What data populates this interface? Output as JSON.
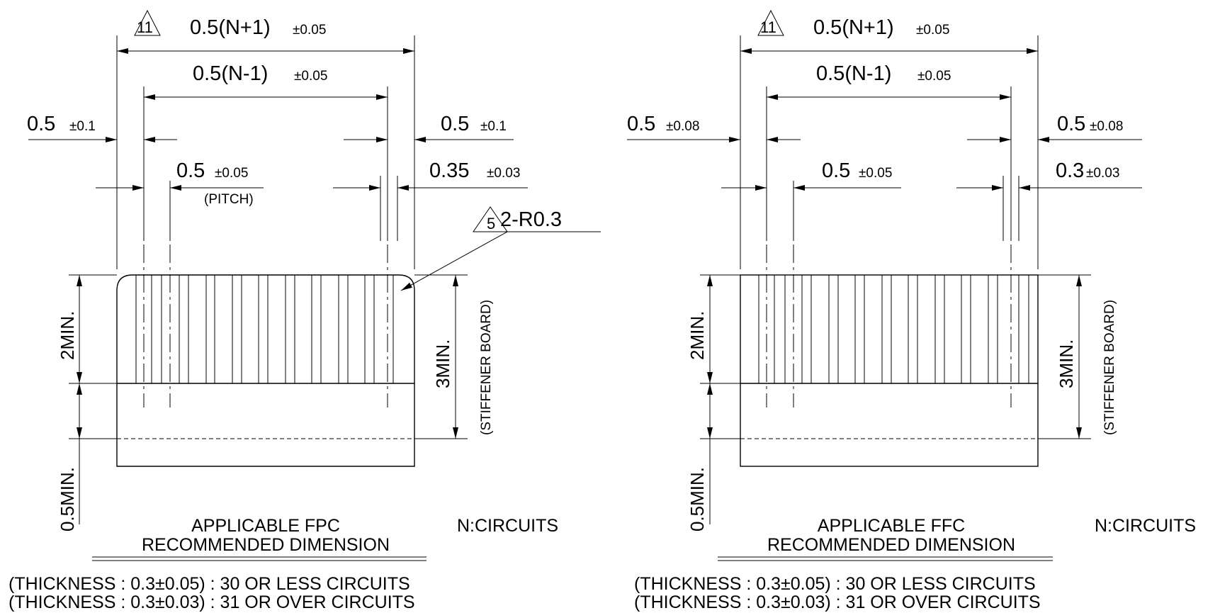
{
  "figure_left": {
    "marker_11": "11",
    "dim_total": "0.5(N+1)",
    "tol_total": "±0.05",
    "dim_inner": "0.5(N-1)",
    "tol_inner": "±0.05",
    "edge_left": "0.5",
    "tol_edge_left": "±0.1",
    "edge_right": "0.5",
    "tol_edge_right": "±0.1",
    "pitch": "0.5",
    "tol_pitch": "±0.05",
    "pitch_note": "(PITCH)",
    "width": "0.35",
    "tol_width": "±0.03",
    "marker_5": "5",
    "radius_note": "2-R0.3",
    "min_2": "2MIN.",
    "min_05": "0.5MIN.",
    "min_3": "3MIN.",
    "stiffener": "(STIFFENER BOARD)",
    "title_line1": "APPLICABLE FPC",
    "title_line2": "RECOMMENDED DIMENSION",
    "n_circuits": "N:CIRCUITS",
    "thickness_1": "(THICKNESS : 0.3±0.05)  : 30 OR LESS CIRCUITS",
    "thickness_2": "(THICKNESS : 0.3±0.03)  : 31 OR OVER CIRCUITS"
  },
  "figure_right": {
    "marker_11": "11",
    "dim_total": "0.5(N+1)",
    "tol_total": "±0.05",
    "dim_inner": "0.5(N-1)",
    "tol_inner": "±0.05",
    "edge_left": "0.5",
    "tol_edge_left": "±0.08",
    "edge_right": "0.5",
    "tol_edge_right": "±0.08",
    "pitch": "0.5",
    "tol_pitch": "±0.05",
    "width": "0.3",
    "tol_width": "±0.03",
    "min_2": "2MIN.",
    "min_05": "0.5MIN.",
    "min_3": "3MIN.",
    "stiffener": "(STIFFENER BOARD)",
    "title_line1": "APPLICABLE FFC",
    "title_line2": "RECOMMENDED DIMENSION",
    "n_circuits": "N:CIRCUITS",
    "thickness_1": "(THICKNESS : 0.3±0.05)  : 30 OR LESS CIRCUITS",
    "thickness_2": "(THICKNESS : 0.3±0.03)  : 31 OR OVER CIRCUITS"
  }
}
